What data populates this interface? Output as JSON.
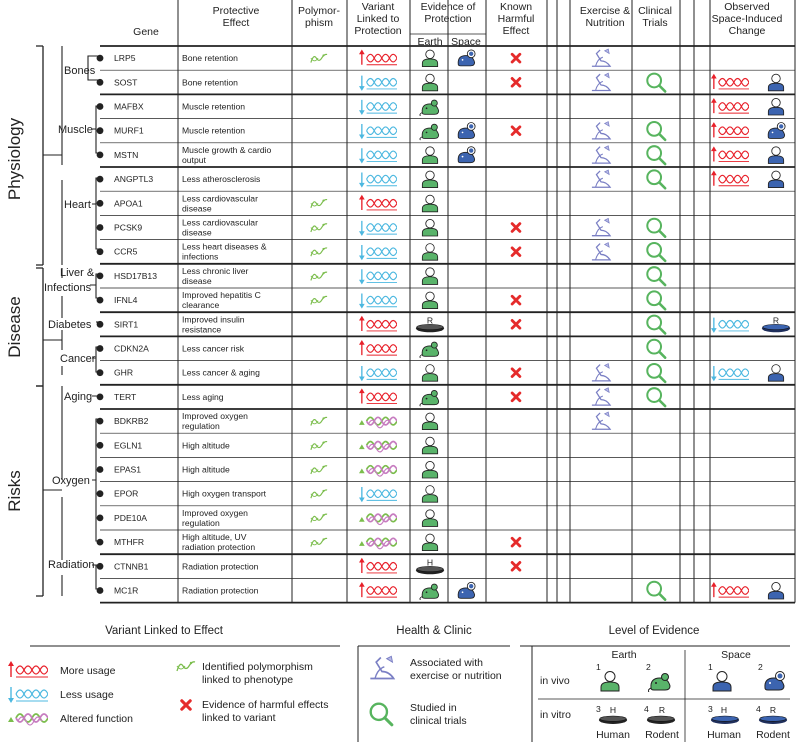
{
  "headers": {
    "gene": "Gene",
    "effect": "Protective Effect",
    "poly": "Polymor-phism",
    "variant": "Variant Linked to Protection",
    "evidence": "Evidence of Protection",
    "earth": "Earth",
    "space": "Space",
    "harm": "Known Harmful Effect",
    "exercise": "Exercise & Nutrition",
    "clinical": "Clinical Trials",
    "observed": "Observed Space-Induced Change"
  },
  "categories": [
    "Physiology",
    "Disease",
    "Risks"
  ],
  "groups": [
    "Bones",
    "Muscle",
    "Heart",
    "Liver &",
    "Infections",
    "Diabetes",
    "Cancer",
    "Aging",
    "Oxygen",
    "Radiation"
  ],
  "colors": {
    "more": "#e8202a",
    "less": "#4cb8e0",
    "altered_a": "#7bbd4c",
    "altered_b": "#c77cc0",
    "human": "#59b36a",
    "space_fill": "#3c64b0",
    "exercise": "#7a7fc4",
    "harm": "#e52b2b",
    "clinical": "#57b45e"
  },
  "rows": [
    {
      "gene": "LRP5",
      "effect": "Bone retention",
      "poly": true,
      "variant": "more",
      "earth": "human",
      "space": "rodent",
      "harm": true,
      "exercise": true,
      "clinical": false,
      "obs_var": "",
      "obs_ev": ""
    },
    {
      "gene": "SOST",
      "effect": "Bone retention",
      "poly": false,
      "variant": "less",
      "earth": "human",
      "space": "",
      "harm": true,
      "exercise": true,
      "clinical": true,
      "obs_var": "more",
      "obs_ev": "human"
    },
    {
      "gene": "MAFBX",
      "effect": "Muscle retention",
      "poly": false,
      "variant": "less",
      "earth": "rodent",
      "space": "",
      "harm": false,
      "exercise": false,
      "clinical": false,
      "obs_var": "more",
      "obs_ev": "human"
    },
    {
      "gene": "MURF1",
      "effect": "Muscle retention",
      "poly": false,
      "variant": "less",
      "earth": "rodent",
      "space": "rodent",
      "harm": true,
      "exercise": true,
      "clinical": true,
      "obs_var": "more",
      "obs_ev": "rodent"
    },
    {
      "gene": "MSTN",
      "effect": "Muscle growth & cardio output",
      "poly": false,
      "variant": "less",
      "earth": "human",
      "space": "rodent",
      "harm": false,
      "exercise": true,
      "clinical": true,
      "obs_var": "more",
      "obs_ev": "human"
    },
    {
      "gene": "ANGPTL3",
      "effect": "Less atherosclerosis",
      "poly": false,
      "variant": "less",
      "earth": "human",
      "space": "",
      "harm": false,
      "exercise": true,
      "clinical": true,
      "obs_var": "more",
      "obs_ev": "human"
    },
    {
      "gene": "APOA1",
      "effect": "Less cardiovascular disease",
      "poly": true,
      "variant": "more",
      "earth": "human",
      "space": "",
      "harm": false,
      "exercise": false,
      "clinical": false,
      "obs_var": "",
      "obs_ev": ""
    },
    {
      "gene": "PCSK9",
      "effect": "Less cardiovascular disease",
      "poly": true,
      "variant": "less",
      "earth": "human",
      "space": "",
      "harm": true,
      "exercise": true,
      "clinical": true,
      "obs_var": "",
      "obs_ev": ""
    },
    {
      "gene": "CCR5",
      "effect": "Less heart diseases & infections",
      "poly": true,
      "variant": "less",
      "earth": "human",
      "space": "",
      "harm": true,
      "exercise": true,
      "clinical": true,
      "obs_var": "",
      "obs_ev": ""
    },
    {
      "gene": "HSD17B13",
      "effect": "Less chronic liver disease",
      "poly": true,
      "variant": "less",
      "earth": "human",
      "space": "",
      "harm": false,
      "exercise": false,
      "clinical": true,
      "obs_var": "",
      "obs_ev": ""
    },
    {
      "gene": "IFNL4",
      "effect": "Improved hepatitis C clearance",
      "poly": true,
      "variant": "less",
      "earth": "human",
      "space": "",
      "harm": true,
      "exercise": false,
      "clinical": true,
      "obs_var": "",
      "obs_ev": ""
    },
    {
      "gene": "SIRT1",
      "effect": "Improved insulin resistance",
      "poly": false,
      "variant": "more",
      "earth": "dish-R",
      "space": "",
      "harm": true,
      "exercise": false,
      "clinical": true,
      "obs_var": "less",
      "obs_ev": "dish-R-space"
    },
    {
      "gene": "CDKN2A",
      "effect": "Less cancer risk",
      "poly": false,
      "variant": "more",
      "earth": "rodent",
      "space": "",
      "harm": false,
      "exercise": false,
      "clinical": true,
      "obs_var": "",
      "obs_ev": ""
    },
    {
      "gene": "GHR",
      "effect": "Less cancer & aging",
      "poly": false,
      "variant": "less",
      "earth": "human",
      "space": "",
      "harm": true,
      "exercise": true,
      "clinical": true,
      "obs_var": "less",
      "obs_ev": "human"
    },
    {
      "gene": "TERT",
      "effect": "Less aging",
      "poly": false,
      "variant": "more",
      "earth": "rodent",
      "space": "",
      "harm": true,
      "exercise": true,
      "clinical": true,
      "obs_var": "",
      "obs_ev": ""
    },
    {
      "gene": "BDKRB2",
      "effect": "Improved oxygen regulation",
      "poly": true,
      "variant": "altered",
      "earth": "human",
      "space": "",
      "harm": false,
      "exercise": true,
      "clinical": false,
      "obs_var": "",
      "obs_ev": ""
    },
    {
      "gene": "EGLN1",
      "effect": "High altitude",
      "poly": true,
      "variant": "altered",
      "earth": "human",
      "space": "",
      "harm": false,
      "exercise": false,
      "clinical": false,
      "obs_var": "",
      "obs_ev": ""
    },
    {
      "gene": "EPAS1",
      "effect": "High altitude",
      "poly": true,
      "variant": "altered",
      "earth": "human",
      "space": "",
      "harm": false,
      "exercise": false,
      "clinical": false,
      "obs_var": "",
      "obs_ev": ""
    },
    {
      "gene": "EPOR",
      "effect": "High oxygen transport",
      "poly": true,
      "variant": "less",
      "earth": "human",
      "space": "",
      "harm": false,
      "exercise": false,
      "clinical": false,
      "obs_var": "",
      "obs_ev": ""
    },
    {
      "gene": "PDE10A",
      "effect": "Improved oxygen regulation",
      "poly": true,
      "variant": "altered",
      "earth": "human",
      "space": "",
      "harm": false,
      "exercise": false,
      "clinical": false,
      "obs_var": "",
      "obs_ev": ""
    },
    {
      "gene": "MTHFR",
      "effect": "High altitude, UV radiation protection",
      "poly": true,
      "variant": "altered",
      "earth": "human",
      "space": "",
      "harm": true,
      "exercise": false,
      "clinical": false,
      "obs_var": "",
      "obs_ev": ""
    },
    {
      "gene": "CTNNB1",
      "effect": "Radiation protection",
      "poly": false,
      "variant": "more",
      "earth": "dish-H",
      "space": "",
      "harm": true,
      "exercise": false,
      "clinical": false,
      "obs_var": "",
      "obs_ev": ""
    },
    {
      "gene": "MC1R",
      "effect": "Radiation protection",
      "poly": false,
      "variant": "more",
      "earth": "rodent",
      "space": "rodent",
      "harm": false,
      "exercise": false,
      "clinical": true,
      "obs_var": "more",
      "obs_ev": "human"
    }
  ],
  "legend": {
    "variant_title": "Variant Linked to Effect",
    "health_title": "Health & Clinic",
    "level_title": "Level of Evidence",
    "more": "More usage",
    "less": "Less usage",
    "altered": "Altered function",
    "poly_1": "Identified polymorphism",
    "poly_2": "linked to phenotype",
    "harm_1": "Evidence of harmful effects",
    "harm_2": "linked to variant",
    "exercise_1": "Associated with",
    "exercise_2": "exercise or nutrition",
    "clinical_1": "Studied in",
    "clinical_2": "clinical trials",
    "earth": "Earth",
    "space": "Space",
    "in_vivo": "in vivo",
    "in_vitro": "in vitro",
    "human": "Human",
    "rodent": "Rodent",
    "n1": "1",
    "n2": "2",
    "n3": "3",
    "n4": "4",
    "H": "H",
    "R": "R"
  }
}
